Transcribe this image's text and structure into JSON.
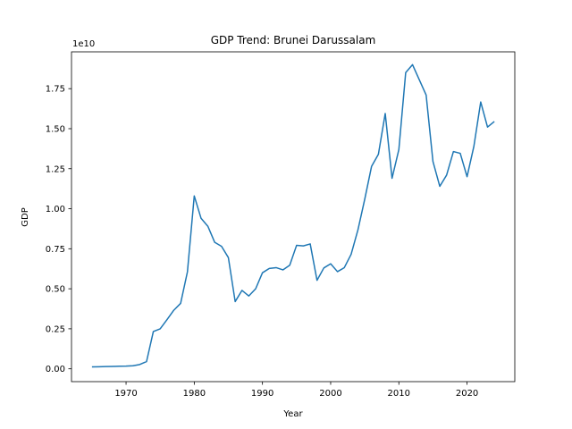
{
  "chart_data": {
    "type": "line",
    "title": "GDP Trend: Brunei Darussalam",
    "xlabel": "Year",
    "ylabel": "GDP",
    "y_offset_text": "1e10",
    "xlim": [
      1962,
      2027
    ],
    "ylim": [
      -0.08,
      1.98
    ],
    "x_ticks": [
      1970,
      1980,
      1990,
      2000,
      2010,
      2020
    ],
    "x_tick_labels": [
      "1970",
      "1980",
      "1990",
      "2000",
      "2010",
      "2020"
    ],
    "y_ticks": [
      0.0,
      0.25,
      0.5,
      0.75,
      1.0,
      1.25,
      1.5,
      1.75
    ],
    "y_tick_labels": [
      "0.00",
      "0.25",
      "0.50",
      "0.75",
      "1.00",
      "1.25",
      "1.50",
      "1.75"
    ],
    "grid": false,
    "line_color": "#1f77b4",
    "series": [
      {
        "x": [
          1965,
          1966,
          1967,
          1968,
          1969,
          1970,
          1971,
          1972,
          1973,
          1974,
          1975,
          1976,
          1977,
          1978,
          1979,
          1980,
          1981,
          1982,
          1983,
          1984,
          1985,
          1986,
          1987,
          1988,
          1989,
          1990,
          1991,
          1992,
          1993,
          1994,
          1995,
          1996,
          1997,
          1998,
          1999,
          2000,
          2001,
          2002,
          2003,
          2004,
          2005,
          2006,
          2007,
          2008,
          2009,
          2010,
          2011,
          2012,
          2013,
          2014,
          2015,
          2016,
          2017,
          2018,
          2019,
          2020,
          2021,
          2022,
          2023,
          2024
        ],
        "y": [
          0.012,
          0.013,
          0.014,
          0.015,
          0.016,
          0.017,
          0.019,
          0.027,
          0.045,
          0.233,
          0.25,
          0.307,
          0.366,
          0.409,
          0.606,
          1.08,
          0.94,
          0.89,
          0.79,
          0.765,
          0.695,
          0.42,
          0.49,
          0.455,
          0.5,
          0.6,
          0.627,
          0.632,
          0.618,
          0.647,
          0.771,
          0.768,
          0.78,
          0.553,
          0.63,
          0.656,
          0.607,
          0.632,
          0.715,
          0.868,
          1.06,
          1.265,
          1.34,
          1.595,
          1.19,
          1.37,
          1.85,
          1.9,
          1.805,
          1.71,
          1.295,
          1.14,
          1.21,
          1.357,
          1.346,
          1.2,
          1.39,
          1.667,
          1.51,
          1.545
        ]
      }
    ]
  }
}
